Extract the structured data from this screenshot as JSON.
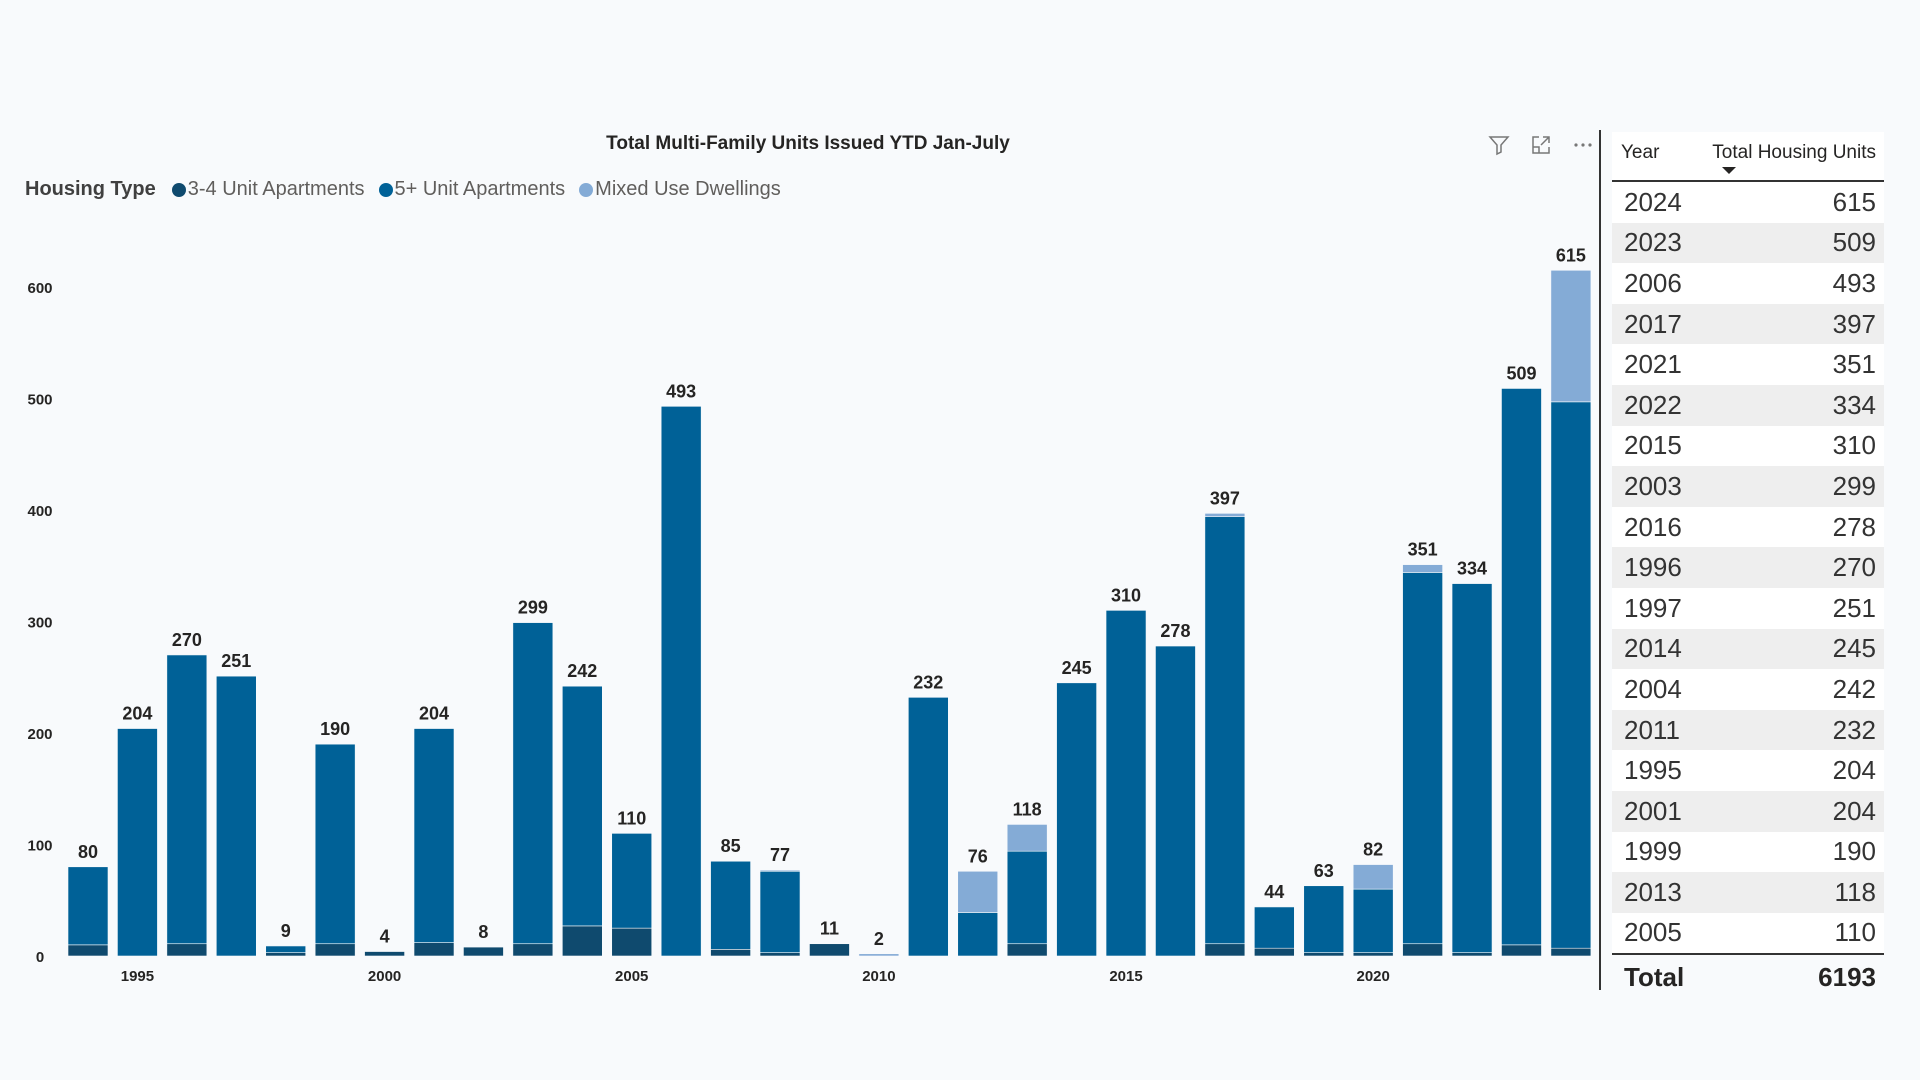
{
  "chart_data": {
    "type": "bar",
    "stacked": true,
    "title": "Total Multi-Family Units Issued YTD Jan-July",
    "legend_title": "Housing Type",
    "legend_position": "top-left",
    "xlabel": "",
    "ylabel": "",
    "ylim": [
      0,
      650
    ],
    "yticks": [
      0,
      100,
      200,
      300,
      400,
      500,
      600
    ],
    "xtick_labels": [
      "1995",
      "2000",
      "2005",
      "2010",
      "2015",
      "2020"
    ],
    "categories": [
      1994,
      1995,
      1996,
      1997,
      1998,
      1999,
      2000,
      2001,
      2002,
      2003,
      2004,
      2005,
      2006,
      2007,
      2008,
      2009,
      2010,
      2011,
      2012,
      2013,
      2014,
      2015,
      2016,
      2017,
      2018,
      2019,
      2020,
      2021,
      2022,
      2023,
      2024
    ],
    "series": [
      {
        "name": "3-4 Unit Apartments",
        "color": "#0f4a6e",
        "values": [
          10,
          0,
          11,
          0,
          3,
          11,
          4,
          12,
          8,
          11,
          27,
          25,
          0,
          6,
          3,
          11,
          0,
          0,
          0,
          11,
          0,
          0,
          0,
          11,
          7,
          3,
          3,
          11,
          3,
          10,
          7
        ]
      },
      {
        "name": "5+ Unit Apartments",
        "color": "#006197",
        "values": [
          70,
          204,
          259,
          251,
          6,
          179,
          0,
          192,
          0,
          288,
          215,
          85,
          493,
          79,
          73,
          0,
          0,
          232,
          39,
          83,
          245,
          310,
          278,
          383,
          37,
          60,
          57,
          333,
          331,
          499,
          490
        ]
      },
      {
        "name": "Mixed Use Dwellings",
        "color": "#84abd6",
        "values": [
          0,
          0,
          0,
          0,
          0,
          0,
          0,
          0,
          0,
          0,
          0,
          0,
          0,
          0,
          1,
          0,
          2,
          0,
          37,
          24,
          0,
          0,
          0,
          3,
          0,
          0,
          22,
          7,
          0,
          0,
          118
        ]
      }
    ],
    "totals": [
      80,
      204,
      270,
      251,
      9,
      190,
      4,
      204,
      8,
      299,
      242,
      110,
      493,
      85,
      77,
      11,
      2,
      232,
      76,
      118,
      245,
      310,
      278,
      397,
      44,
      63,
      82,
      351,
      334,
      509,
      615
    ],
    "grid": false
  },
  "toolbar": {
    "icons": [
      "filter-icon",
      "focus-mode-icon",
      "more-options-icon"
    ]
  },
  "table": {
    "headers": [
      "Year",
      "Total Housing Units"
    ],
    "rows": [
      [
        "2024",
        "615"
      ],
      [
        "2023",
        "509"
      ],
      [
        "2006",
        "493"
      ],
      [
        "2017",
        "397"
      ],
      [
        "2021",
        "351"
      ],
      [
        "2022",
        "334"
      ],
      [
        "2015",
        "310"
      ],
      [
        "2003",
        "299"
      ],
      [
        "2016",
        "278"
      ],
      [
        "1996",
        "270"
      ],
      [
        "1997",
        "251"
      ],
      [
        "2014",
        "245"
      ],
      [
        "2004",
        "242"
      ],
      [
        "2011",
        "232"
      ],
      [
        "1995",
        "204"
      ],
      [
        "2001",
        "204"
      ],
      [
        "1999",
        "190"
      ],
      [
        "2013",
        "118"
      ],
      [
        "2005",
        "110"
      ]
    ],
    "total_label": "Total",
    "total_value": "6193"
  }
}
